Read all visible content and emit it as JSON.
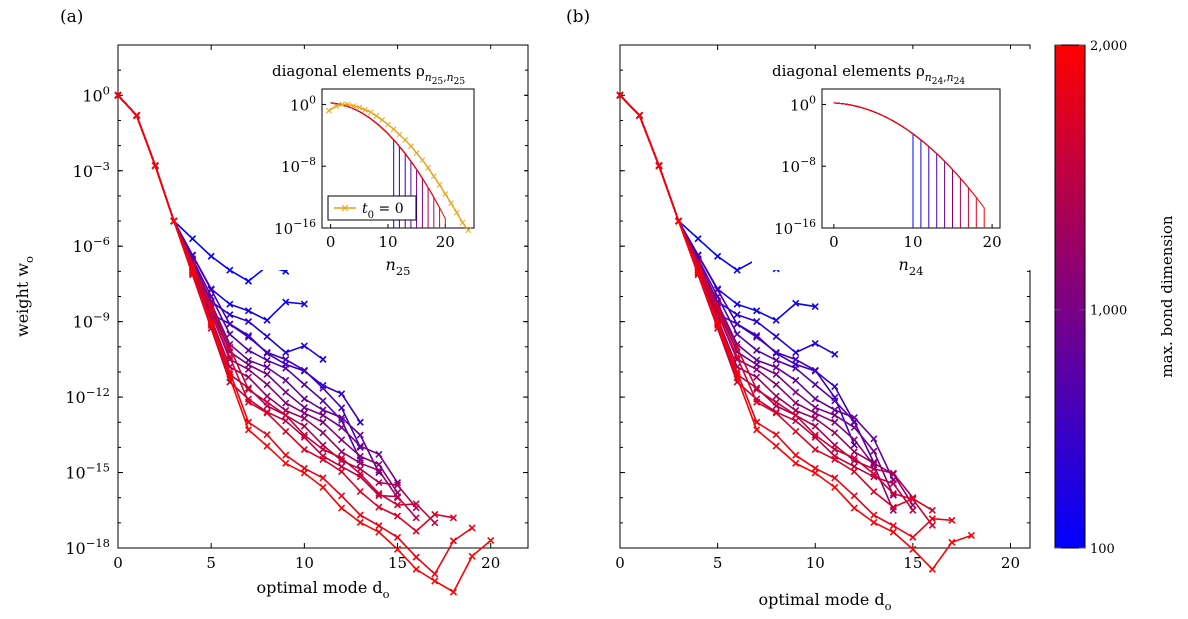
{
  "chart_data": [
    {
      "type": "line",
      "panel_label": "(a)",
      "xlabel": "optimal mode d",
      "xlabel_sub": "o",
      "ylabel": "weight w",
      "ylabel_sub": "o",
      "xlim": [
        0,
        22
      ],
      "ylim_log10": [
        -18,
        2
      ],
      "y_log_scale": true,
      "x_ticks": [
        "0",
        "5",
        "10",
        "15",
        "20"
      ],
      "y_ticks": [
        {
          "exp": "0"
        },
        {
          "exp": "−3"
        },
        {
          "exp": "−6"
        },
        {
          "exp": "−9"
        },
        {
          "exp": "−12"
        },
        {
          "exp": "−15"
        },
        {
          "exp": "−18"
        }
      ],
      "marker": "x",
      "series_count": 16,
      "curve_family": {
        "common_head_log10": [
          0,
          -0.8,
          -2.8,
          -5.0
        ],
        "knee_mode_first": 5,
        "knee_mode_last": 7,
        "plateau_start_log10": [
          -6.4,
          -7.7,
          -8.2,
          -8.7,
          -9.1,
          -9.5,
          -9.9,
          -10.2,
          -10.5,
          -10.8,
          -11.1,
          -11.4,
          -11.7,
          -12.2,
          -13.0,
          -13.3
        ],
        "plateau_end_mode": [
          9,
          10,
          11,
          13,
          13,
          13,
          14,
          15,
          15,
          15,
          16,
          16,
          17,
          18,
          19,
          20
        ],
        "final_log10": [
          -7.0,
          -8.3,
          -10.5,
          -13.0,
          -14.0,
          -14.5,
          -15.0,
          -15.4,
          -15.8,
          -16.0,
          -16.4,
          -16.8,
          -17.0,
          -16.8,
          -17.2,
          -17.7
        ]
      },
      "inset": {
        "title": "diagonal elements ρ",
        "title_sub": "n",
        "title_subsub": "25",
        "xlabel": "n",
        "xlabel_sub": "25",
        "xlim": [
          -1.5,
          25
        ],
        "ylim_log10": [
          -16,
          2
        ],
        "x_ticks": [
          "0",
          "10",
          "20"
        ],
        "y_ticks": [
          {
            "exp": "0"
          },
          {
            "exp": "−8"
          },
          {
            "exp": "−16"
          }
        ],
        "legend": "t",
        "legend_sub": "0",
        "legend_rest": " = 0",
        "t0_curve": {
          "n": [
            -0.3,
            1,
            2,
            3,
            4,
            5,
            6,
            7,
            8,
            9,
            10,
            11,
            12,
            13,
            14,
            15,
            16,
            17,
            18,
            19,
            20,
            21,
            22,
            23,
            24
          ],
          "log10": [
            -0.8,
            -0.2,
            0.0,
            0.0,
            -0.2,
            -0.4,
            -0.7,
            -1.0,
            -1.5,
            -2.0,
            -2.6,
            -3.2,
            -3.9,
            -4.6,
            -5.4,
            -6.3,
            -7.2,
            -8.2,
            -9.3,
            -10.4,
            -11.6,
            -12.8,
            -14.0,
            -15.3,
            -16.3
          ]
        },
        "cutoffs_n": [
          11,
          12,
          13,
          14,
          15,
          16,
          17,
          18,
          19,
          20
        ]
      }
    },
    {
      "type": "line",
      "panel_label": "(b)",
      "xlabel": "optimal mode d",
      "xlabel_sub": "o",
      "xlim": [
        0,
        21
      ],
      "ylim_log10": [
        -18,
        2
      ],
      "y_log_scale": true,
      "x_ticks": [
        "0",
        "5",
        "10",
        "15",
        "20"
      ],
      "marker": "x",
      "series_count": 16,
      "curve_family": {
        "common_head_log10": [
          0,
          -0.8,
          -2.8,
          -5.0
        ],
        "knee_mode_first": 5,
        "knee_mode_last": 7,
        "plateau_start_log10": [
          -6.4,
          -7.7,
          -8.2,
          -8.7,
          -9.1,
          -9.5,
          -9.9,
          -10.2,
          -10.5,
          -10.8,
          -11.1,
          -11.4,
          -11.7,
          -12.2,
          -13.0,
          -13.3
        ],
        "plateau_end_mode": [
          8,
          10,
          11,
          12,
          12,
          13,
          14,
          14,
          14,
          15,
          15,
          15,
          16,
          16,
          17,
          18
        ],
        "final_log10": [
          -6.9,
          -8.4,
          -10.3,
          -13.0,
          -13.9,
          -14.6,
          -15.3,
          -15.9,
          -16.5,
          -16.3,
          -16.0,
          -16.5,
          -17.1,
          -16.5,
          -16.9,
          -17.5
        ]
      },
      "inset": {
        "title": "diagonal elements ρ",
        "title_sub": "n",
        "title_subsub": "24",
        "xlabel": "n",
        "xlabel_sub": "24",
        "xlim": [
          -1.5,
          21
        ],
        "ylim_log10": [
          -16,
          2
        ],
        "x_ticks": [
          "0",
          "10",
          "20"
        ],
        "y_ticks": [
          {
            "exp": "0"
          },
          {
            "exp": "−8"
          },
          {
            "exp": "−16"
          }
        ],
        "cutoffs_n": [
          10,
          11,
          12,
          13,
          14,
          15,
          16,
          17,
          18,
          19
        ]
      }
    }
  ],
  "colorbar": {
    "label": "max. bond dimension",
    "ticks": [
      "2,000",
      "1,000",
      "100"
    ],
    "tick_values": [
      2000,
      1000,
      100
    ],
    "color_min": "#0000ff",
    "color_max": "#ff0000",
    "t0_color": "#e8a317"
  }
}
